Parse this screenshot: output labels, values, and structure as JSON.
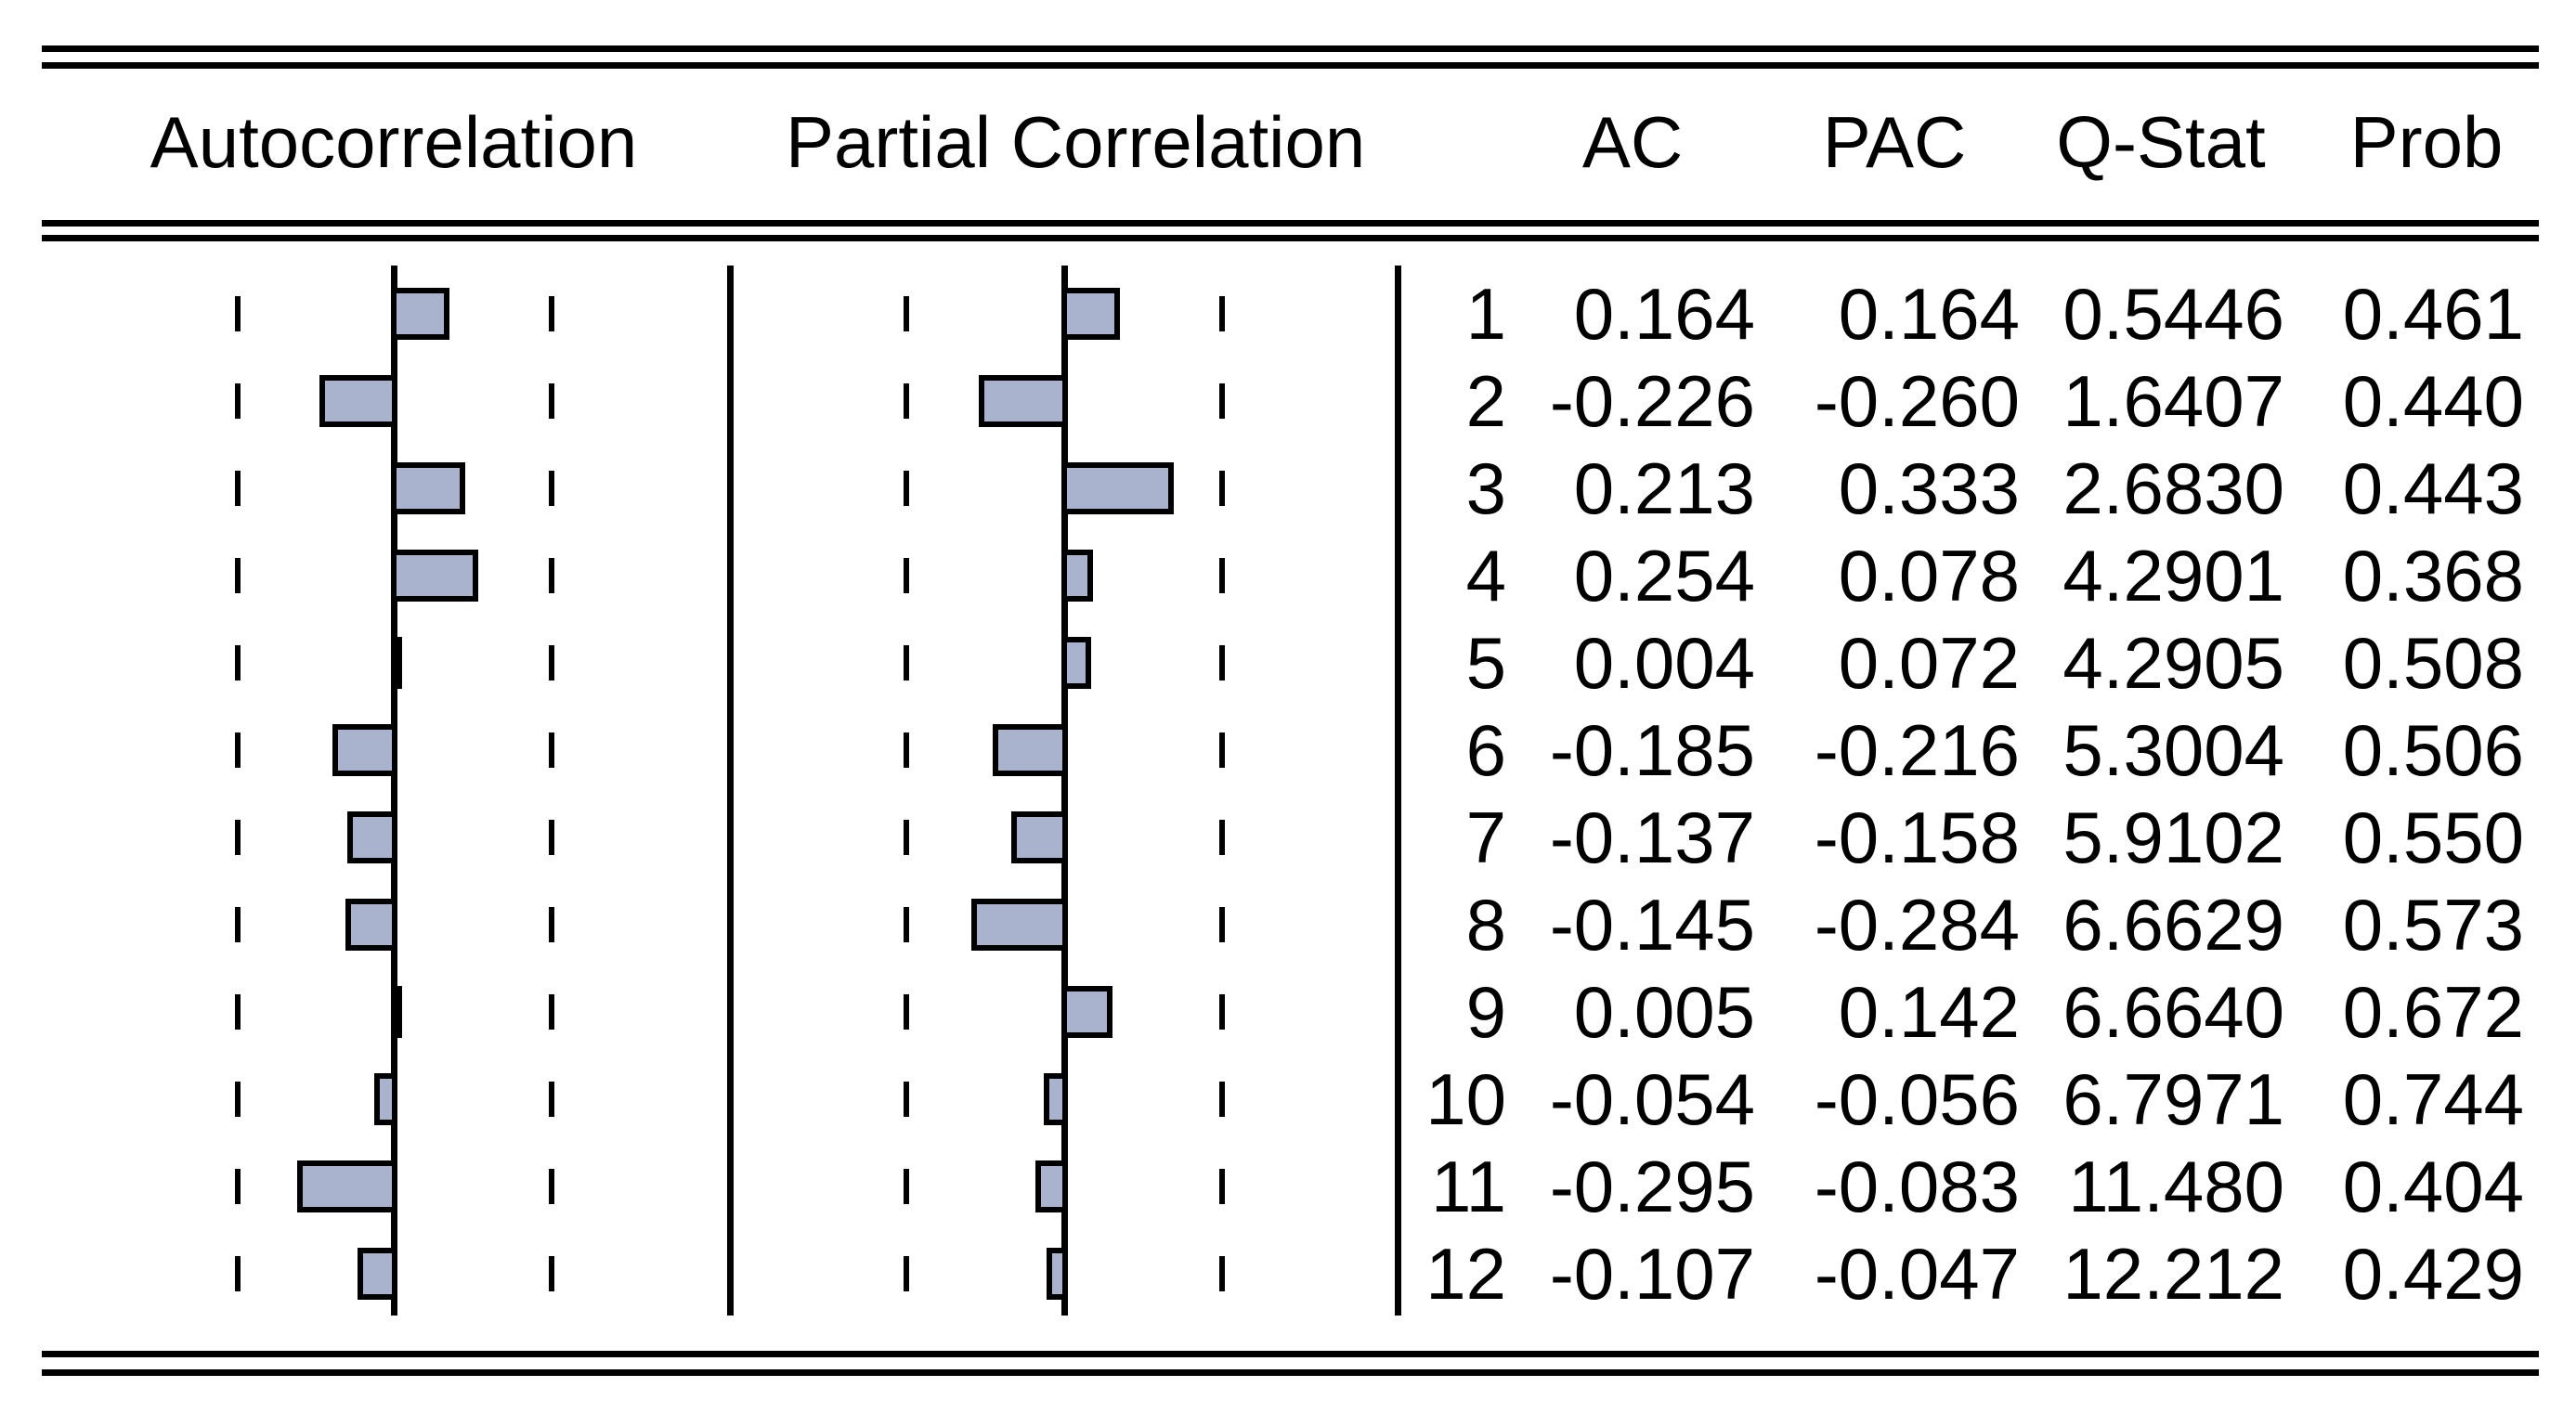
{
  "header": {
    "ac": "AC",
    "pac": "PAC",
    "qstat": "Q-Stat",
    "prob": "Prob"
  },
  "colors": {
    "bar_fill": "#a9b3cd",
    "line": "#000000",
    "background": "#ffffff"
  },
  "chart_data": {
    "type": "bar",
    "orientation": "horizontal",
    "lags": [
      1,
      2,
      3,
      4,
      5,
      6,
      7,
      8,
      9,
      10,
      11,
      12
    ],
    "panels": [
      {
        "title": "Autocorrelation",
        "values": [
          0.164,
          -0.226,
          0.213,
          0.254,
          0.004,
          -0.185,
          -0.137,
          -0.145,
          0.005,
          -0.054,
          -0.295,
          -0.107
        ]
      },
      {
        "title": "Partial Correlation",
        "values": [
          0.164,
          -0.26,
          0.333,
          0.078,
          0.072,
          -0.216,
          -0.158,
          -0.284,
          0.142,
          -0.056,
          -0.083,
          -0.047
        ]
      }
    ],
    "xlim": [
      -0.5,
      0.5
    ],
    "dashed_band": 0.5,
    "zero_axis": true,
    "grid": false,
    "legend": "none"
  },
  "table": {
    "rows": [
      {
        "lag": "1",
        "ac": "0.164",
        "pac": "0.164",
        "qstat": "0.5446",
        "prob": "0.461"
      },
      {
        "lag": "2",
        "ac": "-0.226",
        "pac": "-0.260",
        "qstat": "1.6407",
        "prob": "0.440"
      },
      {
        "lag": "3",
        "ac": "0.213",
        "pac": "0.333",
        "qstat": "2.6830",
        "prob": "0.443"
      },
      {
        "lag": "4",
        "ac": "0.254",
        "pac": "0.078",
        "qstat": "4.2901",
        "prob": "0.368"
      },
      {
        "lag": "5",
        "ac": "0.004",
        "pac": "0.072",
        "qstat": "4.2905",
        "prob": "0.508"
      },
      {
        "lag": "6",
        "ac": "-0.185",
        "pac": "-0.216",
        "qstat": "5.3004",
        "prob": "0.506"
      },
      {
        "lag": "7",
        "ac": "-0.137",
        "pac": "-0.158",
        "qstat": "5.9102",
        "prob": "0.550"
      },
      {
        "lag": "8",
        "ac": "-0.145",
        "pac": "-0.284",
        "qstat": "6.6629",
        "prob": "0.573"
      },
      {
        "lag": "9",
        "ac": "0.005",
        "pac": "0.142",
        "qstat": "6.6640",
        "prob": "0.672"
      },
      {
        "lag": "10",
        "ac": "-0.054",
        "pac": "-0.056",
        "qstat": "6.7971",
        "prob": "0.744"
      },
      {
        "lag": "11",
        "ac": "-0.295",
        "pac": "-0.083",
        "qstat": "11.480",
        "prob": "0.404"
      },
      {
        "lag": "12",
        "ac": "-0.107",
        "pac": "-0.047",
        "qstat": "12.212",
        "prob": "0.429"
      }
    ]
  }
}
